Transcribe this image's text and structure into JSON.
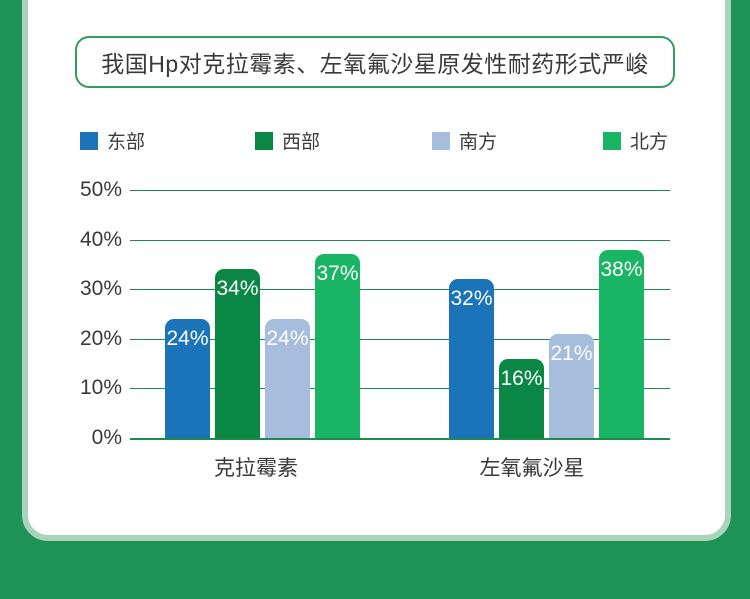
{
  "page": {
    "background_color": "#1d9355",
    "card_background": "#ffffff",
    "card_border_color": "#a9d4ba"
  },
  "title": {
    "text": "我国Hp对克拉霉素、左氧氟沙星原发性耐药形式严峻",
    "border_color": "#2e9e5f",
    "text_color": "#3a3a3a"
  },
  "legend": {
    "items": [
      {
        "label": "东部",
        "color": "#1b73b9"
      },
      {
        "label": "西部",
        "color": "#0a8745"
      },
      {
        "label": "南方",
        "color": "#a6bddd"
      },
      {
        "label": "北方",
        "color": "#19b464"
      }
    ]
  },
  "chart_data": {
    "type": "bar",
    "categories": [
      "克拉霉素",
      "左氧氟沙星"
    ],
    "series": [
      {
        "name": "东部",
        "color": "#1b73b9",
        "values": [
          24,
          32
        ]
      },
      {
        "name": "西部",
        "color": "#0a8745",
        "values": [
          34,
          16
        ]
      },
      {
        "name": "南方",
        "color": "#a6bddd",
        "values": [
          24,
          21
        ]
      },
      {
        "name": "北方",
        "color": "#19b464",
        "values": [
          37,
          38
        ]
      }
    ],
    "value_label_suffix": "%",
    "y_ticks": [
      "50%",
      "40%",
      "30%",
      "20%",
      "10%",
      "0%"
    ],
    "ylim": [
      0,
      50
    ],
    "grid": true,
    "gridline_color": "#1e8a4d",
    "legend_position": "top",
    "value_labels": "inside-top",
    "value_label_color": "#ffffff"
  }
}
